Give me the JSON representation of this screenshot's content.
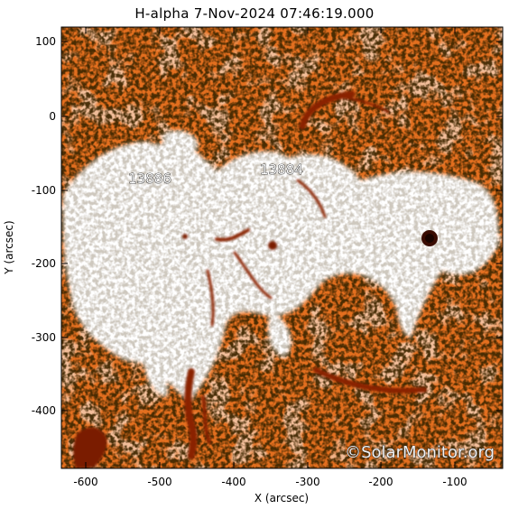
{
  "title": "H-alpha   7-Nov-2024 07:46:19.000",
  "x_axis": {
    "label": "X (arcsec)",
    "ticks": [
      "-600",
      "-500",
      "-400",
      "-300",
      "-200",
      "-100"
    ]
  },
  "y_axis": {
    "label": "Y (arcsec)",
    "ticks": [
      "100",
      "0",
      "-100",
      "-200",
      "-300",
      "-400"
    ]
  },
  "regions": [
    {
      "label": "13886"
    },
    {
      "label": "13884"
    }
  ],
  "watermark": "©SolarMonitor.org",
  "colors": {
    "background": "#ffffff",
    "chromosphere": "#e06a1a",
    "filament": "#9a2a05",
    "plage": "#ffffff",
    "axis": "#000000"
  }
}
